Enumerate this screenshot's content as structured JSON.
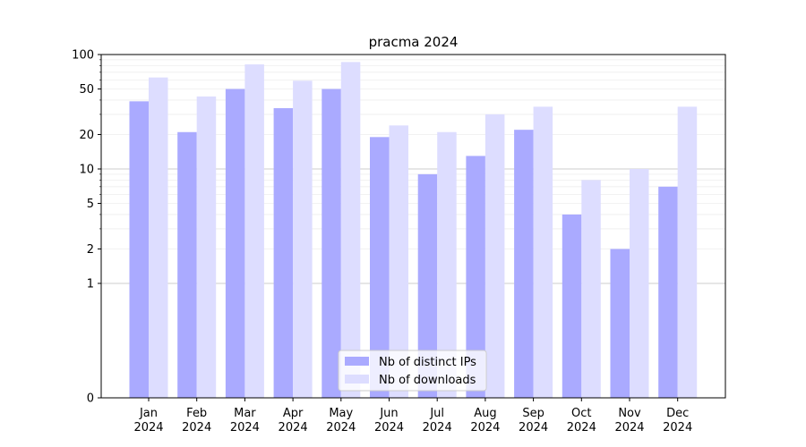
{
  "chart_data": {
    "type": "bar",
    "title": "pracma 2024",
    "xlabel": "",
    "ylabel": "",
    "scale": "symlog",
    "ylim": [
      0,
      100
    ],
    "yticks": [
      0,
      1,
      2,
      5,
      10,
      20,
      50,
      100
    ],
    "ytick_labels": [
      "0",
      "1",
      "2",
      "5",
      "10",
      "20",
      "50",
      "100"
    ],
    "grid": "horizontal, major and minor",
    "legend_position": "bottom-center",
    "categories": [
      {
        "month": "Jan",
        "year": "2024"
      },
      {
        "month": "Feb",
        "year": "2024"
      },
      {
        "month": "Mar",
        "year": "2024"
      },
      {
        "month": "Apr",
        "year": "2024"
      },
      {
        "month": "May",
        "year": "2024"
      },
      {
        "month": "Jun",
        "year": "2024"
      },
      {
        "month": "Jul",
        "year": "2024"
      },
      {
        "month": "Aug",
        "year": "2024"
      },
      {
        "month": "Sep",
        "year": "2024"
      },
      {
        "month": "Oct",
        "year": "2024"
      },
      {
        "month": "Nov",
        "year": "2024"
      },
      {
        "month": "Dec",
        "year": "2024"
      }
    ],
    "series": [
      {
        "name": "Nb of distinct IPs",
        "color": "#aaaaff",
        "values": [
          39,
          21,
          50,
          34,
          50,
          19,
          9,
          13,
          22,
          4,
          2,
          7
        ]
      },
      {
        "name": "Nb of downloads",
        "color": "#ddddff",
        "values": [
          63,
          43,
          82,
          59,
          86,
          24,
          21,
          30,
          35,
          8,
          10,
          35
        ]
      }
    ]
  }
}
